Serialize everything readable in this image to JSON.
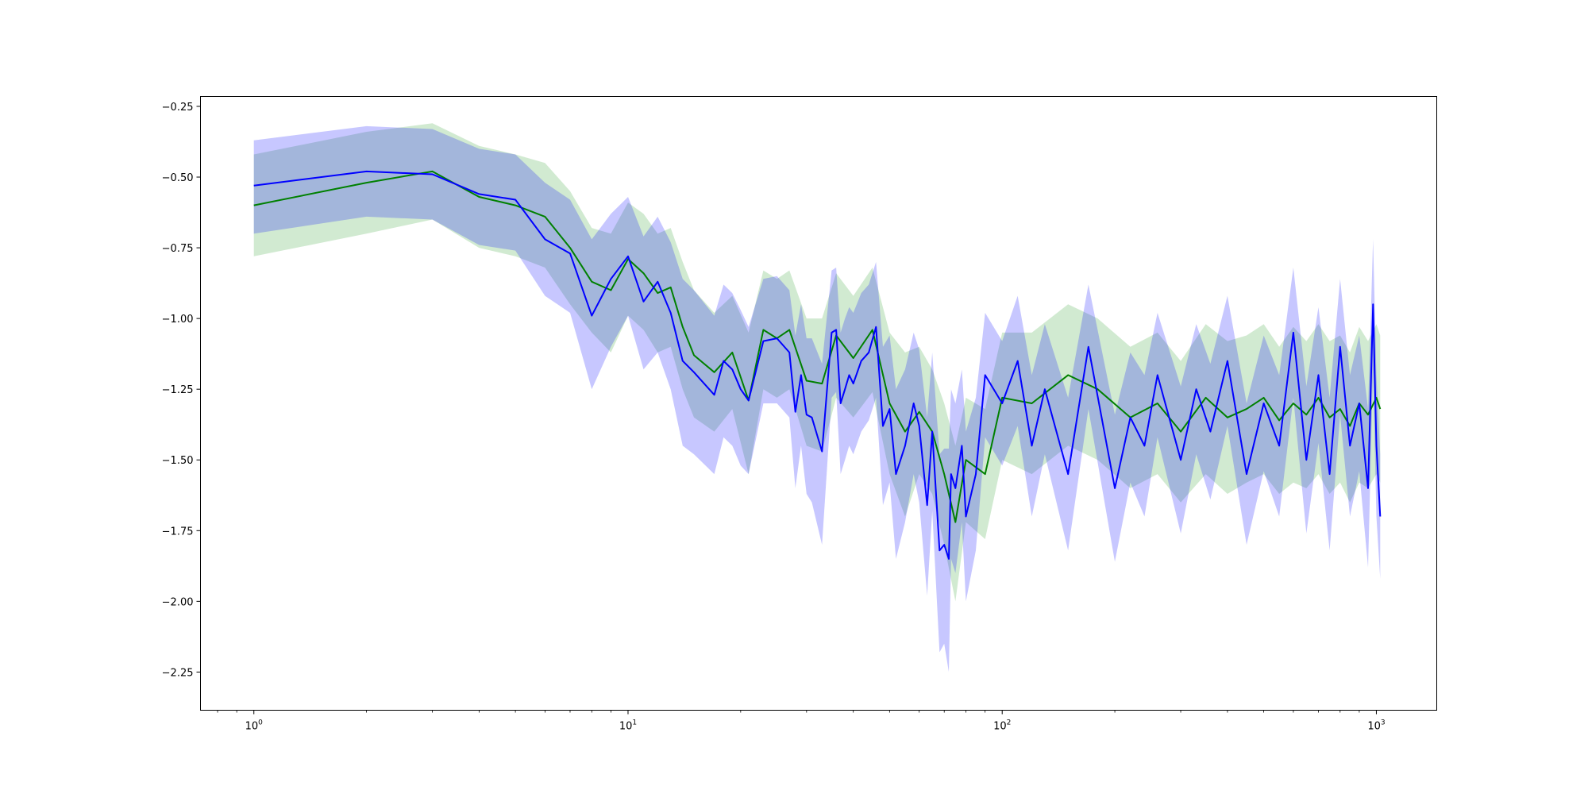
{
  "chart_data": {
    "type": "line",
    "title": "",
    "xlabel": "",
    "ylabel": "",
    "xscale": "log",
    "xlim": [
      0.72,
      1450
    ],
    "ylim": [
      -2.385,
      -0.215
    ],
    "grid": false,
    "legend": "none",
    "x_ticks": [
      {
        "base": "10",
        "exp": "0",
        "value": 1
      },
      {
        "base": "10",
        "exp": "1",
        "value": 10
      },
      {
        "base": "10",
        "exp": "2",
        "value": 100
      },
      {
        "base": "10",
        "exp": "3",
        "value": 1000
      }
    ],
    "y_ticks": [
      {
        "label": "−0.25",
        "value": -0.25
      },
      {
        "label": "−0.50",
        "value": -0.5
      },
      {
        "label": "−0.75",
        "value": -0.75
      },
      {
        "label": "−1.00",
        "value": -1.0
      },
      {
        "label": "−1.25",
        "value": -1.25
      },
      {
        "label": "−1.50",
        "value": -1.5
      },
      {
        "label": "−1.75",
        "value": -1.75
      },
      {
        "label": "−2.00",
        "value": -2.0
      },
      {
        "label": "−2.25",
        "value": -2.25
      }
    ],
    "series": [
      {
        "color": "#008000",
        "band_color": "#2ca02c",
        "band_opacity": 0.22,
        "x": [
          1,
          2,
          3,
          4,
          5,
          6,
          7,
          8,
          9,
          10,
          11,
          12,
          13,
          14,
          15,
          17,
          19,
          21,
          23,
          25,
          27,
          30,
          33,
          36,
          40,
          45,
          50,
          55,
          60,
          65,
          70,
          75,
          80,
          90,
          100,
          120,
          150,
          180,
          220,
          260,
          300,
          350,
          400,
          450,
          500,
          550,
          600,
          650,
          700,
          750,
          800,
          850,
          900,
          950,
          1000,
          1024
        ],
        "y": [
          -0.6,
          -0.52,
          -0.48,
          -0.57,
          -0.6,
          -0.64,
          -0.75,
          -0.87,
          -0.9,
          -0.79,
          -0.84,
          -0.91,
          -0.89,
          -1.03,
          -1.13,
          -1.19,
          -1.12,
          -1.29,
          -1.04,
          -1.07,
          -1.04,
          -1.22,
          -1.23,
          -1.06,
          -1.14,
          -1.04,
          -1.3,
          -1.4,
          -1.33,
          -1.4,
          -1.55,
          -1.72,
          -1.5,
          -1.55,
          -1.28,
          -1.3,
          -1.2,
          -1.25,
          -1.35,
          -1.3,
          -1.4,
          -1.28,
          -1.35,
          -1.32,
          -1.28,
          -1.36,
          -1.3,
          -1.34,
          -1.28,
          -1.35,
          -1.32,
          -1.38,
          -1.3,
          -1.34,
          -1.28,
          -1.32
        ],
        "lower": [
          -0.78,
          -0.7,
          -0.65,
          -0.75,
          -0.78,
          -0.82,
          -0.95,
          -1.05,
          -1.12,
          -0.99,
          -1.04,
          -1.12,
          -1.1,
          -1.25,
          -1.35,
          -1.4,
          -1.32,
          -1.55,
          -1.25,
          -1.28,
          -1.25,
          -1.45,
          -1.47,
          -1.28,
          -1.35,
          -1.26,
          -1.55,
          -1.7,
          -1.55,
          -1.62,
          -1.8,
          -2.0,
          -1.72,
          -1.78,
          -1.5,
          -1.55,
          -1.45,
          -1.5,
          -1.6,
          -1.55,
          -1.65,
          -1.55,
          -1.62,
          -1.58,
          -1.55,
          -1.62,
          -1.58,
          -1.6,
          -1.55,
          -1.62,
          -1.58,
          -1.65,
          -1.58,
          -1.6,
          -1.55,
          -1.58
        ],
        "upper": [
          -0.42,
          -0.34,
          -0.31,
          -0.39,
          -0.42,
          -0.45,
          -0.55,
          -0.68,
          -0.7,
          -0.59,
          -0.63,
          -0.7,
          -0.68,
          -0.8,
          -0.9,
          -0.98,
          -0.92,
          -1.05,
          -0.83,
          -0.86,
          -0.83,
          -1.0,
          -1.0,
          -0.84,
          -0.92,
          -0.82,
          -1.05,
          -1.12,
          -1.1,
          -1.18,
          -1.3,
          -1.45,
          -1.28,
          -1.32,
          -1.05,
          -1.05,
          -0.95,
          -1.0,
          -1.1,
          -1.05,
          -1.15,
          -1.02,
          -1.08,
          -1.06,
          -1.02,
          -1.1,
          -1.03,
          -1.08,
          -1.02,
          -1.08,
          -1.06,
          -1.12,
          -1.03,
          -1.08,
          -1.02,
          -1.06
        ]
      },
      {
        "color": "#0000ff",
        "band_color": "#0000ff",
        "band_opacity": 0.22,
        "x": [
          1,
          2,
          3,
          4,
          5,
          6,
          7,
          8,
          9,
          10,
          11,
          12,
          13,
          14,
          15,
          17,
          18,
          19,
          20,
          21,
          23,
          25,
          27,
          28,
          29,
          30,
          31,
          33,
          35,
          36,
          37,
          38,
          39,
          40,
          42,
          44,
          46,
          48,
          50,
          52,
          55,
          58,
          60,
          63,
          65,
          68,
          70,
          72,
          73,
          75,
          78,
          80,
          85,
          90,
          100,
          110,
          120,
          130,
          150,
          170,
          200,
          220,
          240,
          260,
          300,
          330,
          360,
          400,
          450,
          500,
          550,
          600,
          650,
          700,
          750,
          800,
          850,
          900,
          950,
          980,
          1000,
          1024
        ],
        "y": [
          -0.53,
          -0.48,
          -0.49,
          -0.56,
          -0.58,
          -0.72,
          -0.77,
          -0.99,
          -0.86,
          -0.78,
          -0.94,
          -0.87,
          -0.98,
          -1.15,
          -1.19,
          -1.27,
          -1.15,
          -1.18,
          -1.25,
          -1.29,
          -1.08,
          -1.07,
          -1.12,
          -1.33,
          -1.2,
          -1.34,
          -1.35,
          -1.47,
          -1.05,
          -1.04,
          -1.3,
          -1.25,
          -1.2,
          -1.23,
          -1.15,
          -1.12,
          -1.03,
          -1.38,
          -1.32,
          -1.55,
          -1.45,
          -1.3,
          -1.38,
          -1.66,
          -1.4,
          -1.82,
          -1.8,
          -1.85,
          -1.55,
          -1.6,
          -1.45,
          -1.7,
          -1.55,
          -1.2,
          -1.3,
          -1.15,
          -1.45,
          -1.25,
          -1.55,
          -1.1,
          -1.6,
          -1.35,
          -1.45,
          -1.2,
          -1.5,
          -1.25,
          -1.4,
          -1.15,
          -1.55,
          -1.3,
          -1.45,
          -1.05,
          -1.5,
          -1.2,
          -1.55,
          -1.1,
          -1.45,
          -1.3,
          -1.6,
          -0.95,
          -1.45,
          -1.7
        ],
        "lower": [
          -0.7,
          -0.64,
          -0.65,
          -0.74,
          -0.76,
          -0.92,
          -0.98,
          -1.25,
          -1.1,
          -0.99,
          -1.18,
          -1.12,
          -1.25,
          -1.45,
          -1.48,
          -1.55,
          -1.42,
          -1.45,
          -1.52,
          -1.55,
          -1.3,
          -1.3,
          -1.35,
          -1.6,
          -1.45,
          -1.62,
          -1.65,
          -1.8,
          -1.28,
          -1.26,
          -1.55,
          -1.5,
          -1.45,
          -1.48,
          -1.4,
          -1.36,
          -1.28,
          -1.66,
          -1.58,
          -1.85,
          -1.72,
          -1.55,
          -1.65,
          -1.98,
          -1.68,
          -2.18,
          -2.15,
          -2.25,
          -1.85,
          -1.9,
          -1.72,
          -2.0,
          -1.82,
          -1.42,
          -1.52,
          -1.38,
          -1.7,
          -1.48,
          -1.82,
          -1.32,
          -1.86,
          -1.58,
          -1.7,
          -1.42,
          -1.76,
          -1.48,
          -1.64,
          -1.38,
          -1.8,
          -1.54,
          -1.7,
          -1.28,
          -1.76,
          -1.44,
          -1.82,
          -1.34,
          -1.7,
          -1.54,
          -1.88,
          -1.18,
          -1.7,
          -1.92
        ],
        "upper": [
          -0.37,
          -0.32,
          -0.33,
          -0.4,
          -0.42,
          -0.52,
          -0.58,
          -0.72,
          -0.63,
          -0.57,
          -0.71,
          -0.64,
          -0.73,
          -0.86,
          -0.9,
          -0.99,
          -0.88,
          -0.91,
          -0.97,
          -1.03,
          -0.86,
          -0.85,
          -0.9,
          -1.06,
          -0.95,
          -1.07,
          -1.07,
          -1.16,
          -0.83,
          -0.82,
          -1.05,
          -1.0,
          -0.96,
          -0.98,
          -0.91,
          -0.88,
          -0.8,
          -1.1,
          -1.06,
          -1.25,
          -1.18,
          -1.05,
          -1.11,
          -1.35,
          -1.12,
          -1.48,
          -1.46,
          -1.46,
          -1.25,
          -1.3,
          -1.18,
          -1.4,
          -1.28,
          -0.98,
          -1.08,
          -0.92,
          -1.2,
          -1.02,
          -1.28,
          -0.88,
          -1.34,
          -1.12,
          -1.2,
          -0.98,
          -1.24,
          -1.02,
          -1.16,
          -0.92,
          -1.3,
          -1.06,
          -1.2,
          -0.82,
          -1.24,
          -0.96,
          -1.28,
          -0.86,
          -1.2,
          -1.06,
          -1.32,
          -0.72,
          -1.2,
          -1.48
        ]
      }
    ]
  }
}
